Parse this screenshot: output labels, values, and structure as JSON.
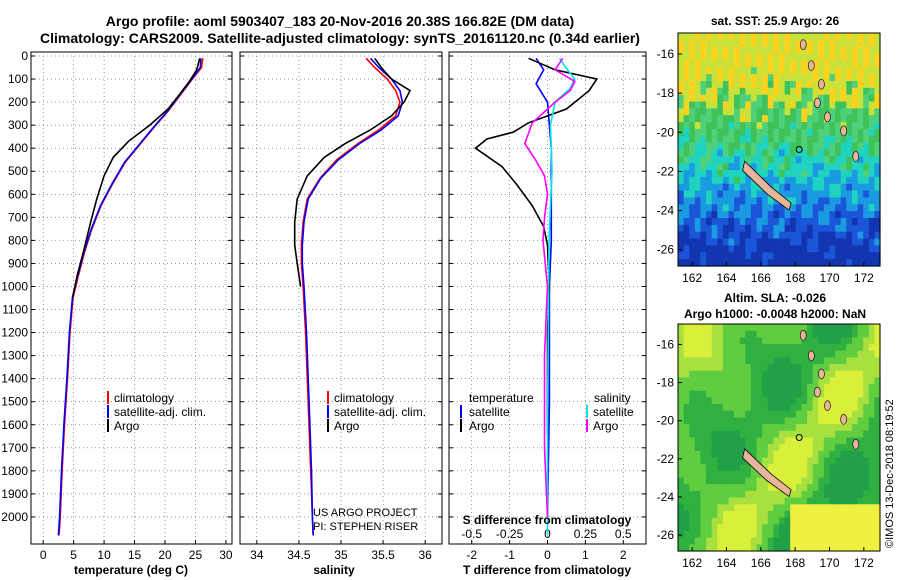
{
  "titles": {
    "line1": "Argo profile: aoml 5903407_183 20-Nov-2016 20.38S 166.82E (DM data)",
    "line2": "Climatology: CARS2009. Satellite-adjusted climatology: synTS_20161120.nc (0.34d earlier)"
  },
  "credit": {
    "line1": "US ARGO PROJECT",
    "line2": "PI: STEPHEN RISER"
  },
  "imos_stamp": "©IMOS 13-Dec-2018 08:19:52",
  "colors": {
    "climatology": "#ff0000",
    "satellite": "#0000ff",
    "argo": "#000000",
    "sal_clim": "#ff00ff",
    "sal_sat": "#00e5e5"
  },
  "legend_main": {
    "clim": "climatology",
    "sat": "satellite-adj. clim.",
    "argo": "Argo"
  },
  "legend_diff": {
    "temp_head": "temperature",
    "sal_head": "salinity",
    "t_sat": "satellite",
    "t_argo": "Argo",
    "s_sat": "satellite",
    "s_argo": "Argo"
  },
  "maps": {
    "sst": {
      "title": "sat. SST: 25.9 Argo: 26",
      "lat_ticks": [
        "-16",
        "-18",
        "-20",
        "-22",
        "-24",
        "-26"
      ],
      "lon_ticks": [
        "162",
        "164",
        "166",
        "168",
        "170",
        "172"
      ]
    },
    "sla": {
      "title1": "Altim. SLA: -0.026",
      "title2": "Argo h1000: -0.0048 h2000: NaN",
      "lat_ticks": [
        "-16",
        "-18",
        "-20",
        "-22",
        "-24",
        "-26"
      ],
      "lon_ticks": [
        "162",
        "164",
        "166",
        "168",
        "170",
        "172"
      ]
    }
  },
  "chart_data": [
    {
      "type": "line",
      "name": "temperature",
      "xlabel": "temperature (deg C)",
      "xlim": [
        -2,
        31
      ],
      "ylim": [
        2100,
        0
      ],
      "xticks": [
        "0",
        "5",
        "10",
        "15",
        "20",
        "25",
        "30"
      ],
      "yticks": [
        "0",
        "100",
        "200",
        "300",
        "400",
        "500",
        "600",
        "700",
        "800",
        "900",
        "1000",
        "1100",
        "1200",
        "1300",
        "1400",
        "1500",
        "1600",
        "1700",
        "1800",
        "1900",
        "2000"
      ],
      "series": [
        {
          "name": "climatology",
          "color": "#ff0000",
          "points": [
            [
              26.2,
              10
            ],
            [
              26,
              50
            ],
            [
              24.5,
              100
            ],
            [
              22.5,
              170
            ],
            [
              20.5,
              240
            ],
            [
              18.5,
              300
            ],
            [
              16,
              380
            ],
            [
              13.5,
              460
            ],
            [
              11.5,
              550
            ],
            [
              9.5,
              650
            ],
            [
              8,
              750
            ],
            [
              6.8,
              850
            ],
            [
              5.8,
              950
            ],
            [
              4.9,
              1050
            ],
            [
              4.4,
              1200
            ],
            [
              4,
              1400
            ],
            [
              3.5,
              1600
            ],
            [
              3.1,
              1800
            ],
            [
              2.8,
              2000
            ],
            [
              2.6,
              2080
            ]
          ]
        },
        {
          "name": "satellite-adj. clim.",
          "color": "#0000ff",
          "points": [
            [
              25.9,
              10
            ],
            [
              25.8,
              50
            ],
            [
              24.4,
              100
            ],
            [
              22.4,
              170
            ],
            [
              20.4,
              240
            ],
            [
              18.4,
              300
            ],
            [
              15.9,
              380
            ],
            [
              13.4,
              460
            ],
            [
              11.4,
              550
            ],
            [
              9.4,
              650
            ],
            [
              7.9,
              750
            ],
            [
              6.7,
              850
            ],
            [
              5.7,
              950
            ],
            [
              4.8,
              1050
            ],
            [
              4.3,
              1200
            ],
            [
              3.9,
              1400
            ],
            [
              3.4,
              1600
            ],
            [
              3,
              1800
            ],
            [
              2.7,
              2000
            ],
            [
              2.5,
              2080
            ]
          ]
        },
        {
          "name": "Argo",
          "color": "#000000",
          "points": [
            [
              25.7,
              10
            ],
            [
              25.2,
              60
            ],
            [
              24,
              110
            ],
            [
              22,
              180
            ],
            [
              20.5,
              230
            ],
            [
              17.5,
              300
            ],
            [
              14,
              370
            ],
            [
              11.5,
              440
            ],
            [
              10,
              520
            ],
            [
              8.8,
              620
            ],
            [
              7.8,
              720
            ],
            [
              6.6,
              850
            ],
            [
              5.6,
              950
            ],
            [
              4.8,
              1050
            ]
          ]
        }
      ]
    },
    {
      "type": "line",
      "name": "salinity",
      "xlabel": "salinity",
      "xlim": [
        33.8,
        36.2
      ],
      "ylim": [
        2100,
        0
      ],
      "xticks": [
        "34",
        "34.5",
        "35",
        "35.5",
        "36"
      ],
      "series": [
        {
          "name": "climatology",
          "color": "#ff0000",
          "points": [
            [
              35.3,
              10
            ],
            [
              35.4,
              50
            ],
            [
              35.55,
              100
            ],
            [
              35.65,
              150
            ],
            [
              35.7,
              200
            ],
            [
              35.65,
              260
            ],
            [
              35.45,
              320
            ],
            [
              35.2,
              380
            ],
            [
              34.95,
              450
            ],
            [
              34.75,
              530
            ],
            [
              34.6,
              620
            ],
            [
              34.55,
              720
            ],
            [
              34.53,
              820
            ],
            [
              34.53,
              900
            ],
            [
              34.55,
              1000
            ],
            [
              34.58,
              1200
            ],
            [
              34.6,
              1400
            ],
            [
              34.62,
              1600
            ],
            [
              34.64,
              1800
            ],
            [
              34.66,
              2000
            ],
            [
              34.67,
              2080
            ]
          ]
        },
        {
          "name": "satellite-adj. clim.",
          "color": "#0000ff",
          "points": [
            [
              35.35,
              10
            ],
            [
              35.45,
              50
            ],
            [
              35.6,
              100
            ],
            [
              35.7,
              150
            ],
            [
              35.73,
              200
            ],
            [
              35.68,
              260
            ],
            [
              35.48,
              320
            ],
            [
              35.22,
              380
            ],
            [
              34.97,
              450
            ],
            [
              34.76,
              530
            ],
            [
              34.61,
              620
            ],
            [
              34.56,
              720
            ],
            [
              34.54,
              820
            ],
            [
              34.54,
              900
            ],
            [
              34.56,
              1000
            ],
            [
              34.59,
              1200
            ],
            [
              34.61,
              1400
            ],
            [
              34.63,
              1600
            ],
            [
              34.65,
              1800
            ],
            [
              34.66,
              2000
            ],
            [
              34.67,
              2080
            ]
          ]
        },
        {
          "name": "Argo",
          "color": "#000000",
          "points": [
            [
              35.4,
              10
            ],
            [
              35.5,
              60
            ],
            [
              35.6,
              100
            ],
            [
              35.82,
              150
            ],
            [
              35.75,
              200
            ],
            [
              35.6,
              260
            ],
            [
              35.35,
              320
            ],
            [
              35.05,
              380
            ],
            [
              34.8,
              440
            ],
            [
              34.6,
              520
            ],
            [
              34.48,
              620
            ],
            [
              34.45,
              720
            ],
            [
              34.45,
              820
            ],
            [
              34.48,
              900
            ],
            [
              34.52,
              1000
            ]
          ]
        }
      ]
    },
    {
      "type": "line",
      "name": "difference",
      "xlabel": "T difference from climatology",
      "top_xlabel": "S difference from climatology",
      "xlim": [
        -2.6,
        2.6
      ],
      "ylim": [
        2100,
        0
      ],
      "xticks": [
        "-2",
        "-1",
        "0",
        "1",
        "2"
      ],
      "top_xticks": [
        "-0.5",
        "-0.25",
        "0",
        "0.25",
        "0.5"
      ],
      "top_xlim": [
        -0.65,
        0.65
      ],
      "series": [
        {
          "name": "temperature satellite",
          "color": "#0000ff",
          "points": [
            [
              -0.3,
              10
            ],
            [
              -0.1,
              60
            ],
            [
              -0.3,
              120
            ],
            [
              0,
              200
            ],
            [
              0.1,
              400
            ],
            [
              0.1,
              800
            ],
            [
              0.05,
              1000
            ],
            [
              0.05,
              1500
            ],
            [
              0,
              2000
            ]
          ]
        },
        {
          "name": "temperature Argo",
          "color": "#000000",
          "points": [
            [
              -0.5,
              10
            ],
            [
              0.2,
              60
            ],
            [
              1.3,
              100
            ],
            [
              1.1,
              150
            ],
            [
              0.5,
              230
            ],
            [
              -0.5,
              290
            ],
            [
              -0.9,
              330
            ],
            [
              -1.6,
              360
            ],
            [
              -1.9,
              400
            ],
            [
              -1.2,
              480
            ],
            [
              -0.8,
              560
            ],
            [
              -0.4,
              650
            ],
            [
              -0.1,
              740
            ],
            [
              0,
              820
            ],
            [
              0.05,
              1000
            ],
            [
              0,
              1200
            ],
            [
              0,
              1500
            ],
            [
              0,
              1640
            ]
          ]
        },
        {
          "name": "salinity satellite",
          "color": "#00e5e5",
          "points": [
            [
              0.08,
              10
            ],
            [
              0.12,
              50
            ],
            [
              0.18,
              100
            ],
            [
              0.15,
              140
            ],
            [
              0.05,
              200
            ],
            [
              0.02,
              300
            ],
            [
              0.03,
              500
            ],
            [
              0.01,
              800
            ],
            [
              0.005,
              1200
            ],
            [
              0,
              1600
            ],
            [
              0,
              2000
            ],
            [
              0,
              2080
            ]
          ]
        },
        {
          "name": "salinity Argo",
          "color": "#ff00ff",
          "points": [
            [
              0.1,
              10
            ],
            [
              0.05,
              60
            ],
            [
              0.18,
              110
            ],
            [
              0.15,
              150
            ],
            [
              0.05,
              200
            ],
            [
              -0.1,
              290
            ],
            [
              -0.15,
              380
            ],
            [
              -0.08,
              450
            ],
            [
              -0.02,
              520
            ],
            [
              0,
              600
            ],
            [
              -0.02,
              700
            ],
            [
              -0.03,
              800
            ],
            [
              0,
              1000
            ],
            [
              -0.02,
              1300
            ],
            [
              -0.02,
              1700
            ],
            [
              0,
              2000
            ]
          ]
        }
      ]
    }
  ]
}
